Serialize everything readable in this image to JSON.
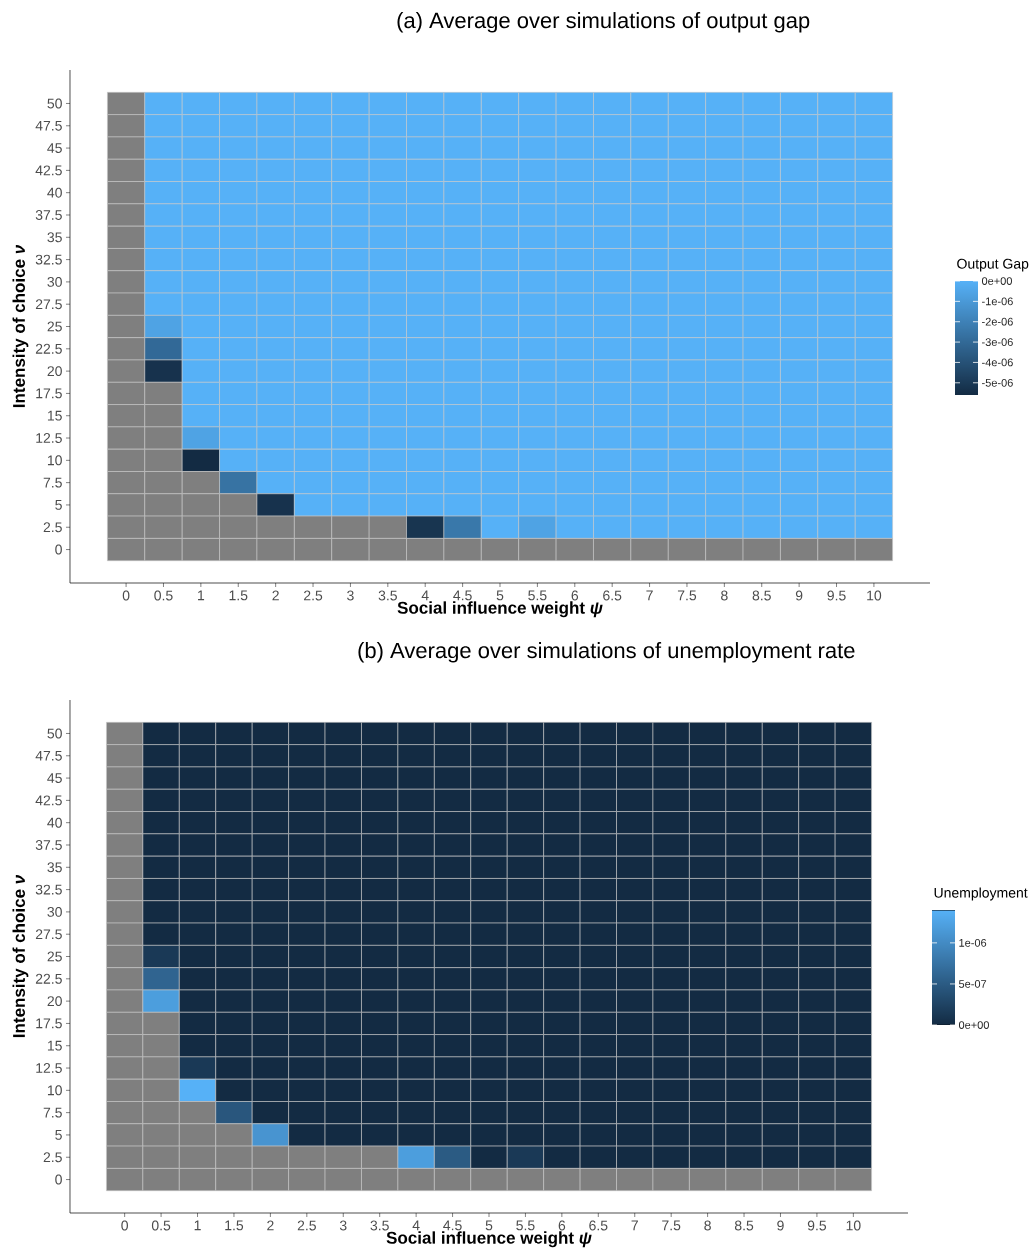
{
  "chart_data": [
    {
      "type": "heatmap",
      "title": "(a) Average over simulations of output gap",
      "xlabel": "Social influence weight *ψ*",
      "ylabel": "Intensity of choice *ν*",
      "clabel": "Output Gap",
      "categories": [
        "0",
        "0.5",
        "1",
        "1.5",
        "2",
        "2.5",
        "3",
        "3.5",
        "4",
        "4.5",
        "5",
        "5.5",
        "6",
        "6.5",
        "7",
        "7.5",
        "8",
        "8.5",
        "9",
        "9.5",
        "10"
      ],
      "y_categories": [
        "50",
        "47.5",
        "45",
        "42.5",
        "40",
        "37.5",
        "35",
        "32.5",
        "30",
        "27.5",
        "25",
        "22.5",
        "20",
        "17.5",
        "15",
        "12.5",
        "10",
        "7.5",
        "5",
        "2.5",
        "0"
      ],
      "cells": [
        [
          null,
          0,
          0,
          0,
          0,
          0,
          0,
          0,
          0,
          0,
          0,
          0,
          0,
          0,
          0,
          0,
          0,
          0,
          0,
          0,
          0
        ],
        [
          null,
          0,
          0,
          0,
          0,
          0,
          0,
          0,
          0,
          0,
          0,
          0,
          0,
          0,
          0,
          0,
          0,
          0,
          0,
          0,
          0
        ],
        [
          null,
          0,
          0,
          0,
          0,
          0,
          0,
          0,
          0,
          0,
          0,
          0,
          0,
          0,
          0,
          0,
          0,
          0,
          0,
          0,
          0
        ],
        [
          null,
          0,
          0,
          0,
          0,
          0,
          0,
          0,
          0,
          0,
          0,
          0,
          0,
          0,
          0,
          0,
          0,
          0,
          0,
          0,
          0
        ],
        [
          null,
          0,
          0,
          0,
          0,
          0,
          0,
          0,
          0,
          0,
          0,
          0,
          0,
          0,
          0,
          0,
          0,
          0,
          0,
          0,
          0
        ],
        [
          null,
          0,
          0,
          0,
          0,
          0,
          0,
          0,
          0,
          0,
          0,
          0,
          0,
          0,
          0,
          0,
          0,
          0,
          0,
          0,
          0
        ],
        [
          null,
          0,
          0,
          0,
          0,
          0,
          0,
          0,
          0,
          0,
          0,
          0,
          0,
          0,
          0,
          0,
          0,
          0,
          0,
          0,
          0
        ],
        [
          null,
          0,
          0,
          0,
          0,
          0,
          0,
          0,
          0,
          0,
          0,
          0,
          0,
          0,
          0,
          0,
          0,
          0,
          0,
          0,
          0
        ],
        [
          null,
          0,
          0,
          0,
          0,
          0,
          0,
          0,
          0,
          0,
          0,
          0,
          0,
          0,
          0,
          0,
          0,
          0,
          0,
          0,
          0
        ],
        [
          null,
          0,
          0,
          0,
          0,
          0,
          0,
          0,
          0,
          0,
          0,
          0,
          0,
          0,
          0,
          0,
          0,
          0,
          0,
          0,
          0
        ],
        [
          null,
          -6e-07,
          0,
          0,
          0,
          0,
          0,
          0,
          0,
          0,
          0,
          0,
          0,
          0,
          0,
          0,
          0,
          0,
          0,
          0,
          0
        ],
        [
          null,
          -3e-06,
          0,
          0,
          0,
          0,
          0,
          0,
          0,
          0,
          0,
          0,
          0,
          0,
          0,
          0,
          0,
          0,
          0,
          0,
          0
        ],
        [
          null,
          -5.3e-06,
          0,
          0,
          0,
          0,
          0,
          0,
          0,
          0,
          0,
          0,
          0,
          0,
          0,
          0,
          0,
          0,
          0,
          0,
          0
        ],
        [
          null,
          null,
          0,
          0,
          0,
          0,
          0,
          0,
          0,
          0,
          0,
          0,
          0,
          0,
          0,
          0,
          0,
          0,
          0,
          0,
          0
        ],
        [
          null,
          null,
          0,
          0,
          0,
          0,
          0,
          0,
          0,
          0,
          0,
          0,
          0,
          0,
          0,
          0,
          0,
          0,
          0,
          0,
          0
        ],
        [
          null,
          null,
          -6e-07,
          0,
          0,
          0,
          0,
          0,
          0,
          0,
          0,
          0,
          0,
          0,
          0,
          0,
          0,
          0,
          0,
          0,
          0
        ],
        [
          null,
          null,
          -5.6e-06,
          0,
          0,
          0,
          0,
          0,
          0,
          0,
          0,
          0,
          0,
          0,
          0,
          0,
          0,
          0,
          0,
          0,
          0
        ],
        [
          null,
          null,
          null,
          -2.6e-06,
          0,
          0,
          0,
          0,
          0,
          0,
          0,
          0,
          0,
          0,
          0,
          0,
          0,
          0,
          0,
          0,
          0
        ],
        [
          null,
          null,
          null,
          null,
          -5.3e-06,
          0,
          0,
          0,
          0,
          0,
          0,
          0,
          0,
          0,
          0,
          0,
          0,
          0,
          0,
          0,
          0
        ],
        [
          null,
          null,
          null,
          null,
          null,
          null,
          null,
          null,
          -5.2e-06,
          -2.4e-06,
          0,
          -6e-07,
          0,
          0,
          0,
          0,
          0,
          0,
          0,
          0,
          0
        ],
        [
          null,
          null,
          null,
          null,
          null,
          null,
          null,
          null,
          null,
          null,
          null,
          null,
          null,
          null,
          null,
          null,
          null,
          null,
          null,
          null,
          null
        ]
      ],
      "clim": [
        -5.6e-06,
        0
      ],
      "cticks": [
        {
          "value": 0,
          "label": "0e+00"
        },
        {
          "value": -1e-06,
          "label": "-1e-06"
        },
        {
          "value": -2e-06,
          "label": "-2e-06"
        },
        {
          "value": -3e-06,
          "label": "-3e-06"
        },
        {
          "value": -4e-06,
          "label": "-4e-06"
        },
        {
          "value": -5e-06,
          "label": "-5e-06"
        }
      ]
    },
    {
      "type": "heatmap",
      "title": "(b) Average over simulations of unemployment rate",
      "xlabel": "Social influence weight *ψ*",
      "ylabel": "Intensity of choice *ν*",
      "clabel": "Unemployment",
      "categories": [
        "0",
        "0.5",
        "1",
        "1.5",
        "2",
        "2.5",
        "3",
        "3.5",
        "4",
        "4.5",
        "5",
        "5.5",
        "6",
        "6.5",
        "7",
        "7.5",
        "8",
        "8.5",
        "9",
        "9.5",
        "10"
      ],
      "y_categories": [
        "50",
        "47.5",
        "45",
        "42.5",
        "40",
        "37.5",
        "35",
        "32.5",
        "30",
        "27.5",
        "25",
        "22.5",
        "20",
        "17.5",
        "15",
        "12.5",
        "10",
        "7.5",
        "5",
        "2.5",
        "0"
      ],
      "cells": [
        [
          null,
          0,
          0,
          0,
          0,
          0,
          0,
          0,
          0,
          0,
          0,
          0,
          0,
          0,
          0,
          0,
          0,
          0,
          0,
          0,
          0
        ],
        [
          null,
          0,
          0,
          0,
          0,
          0,
          0,
          0,
          0,
          0,
          0,
          0,
          0,
          0,
          0,
          0,
          0,
          0,
          0,
          0,
          0
        ],
        [
          null,
          0,
          0,
          0,
          0,
          0,
          0,
          0,
          0,
          0,
          0,
          0,
          0,
          0,
          0,
          0,
          0,
          0,
          0,
          0,
          0
        ],
        [
          null,
          0,
          0,
          0,
          0,
          0,
          0,
          0,
          0,
          0,
          0,
          0,
          0,
          0,
          0,
          0,
          0,
          0,
          0,
          0,
          0
        ],
        [
          null,
          0,
          0,
          0,
          0,
          0,
          0,
          0,
          0,
          0,
          0,
          0,
          0,
          0,
          0,
          0,
          0,
          0,
          0,
          0,
          0
        ],
        [
          null,
          0,
          0,
          0,
          0,
          0,
          0,
          0,
          0,
          0,
          0,
          0,
          0,
          0,
          0,
          0,
          0,
          0,
          0,
          0,
          0
        ],
        [
          null,
          0,
          0,
          0,
          0,
          0,
          0,
          0,
          0,
          0,
          0,
          0,
          0,
          0,
          0,
          0,
          0,
          0,
          0,
          0,
          0
        ],
        [
          null,
          0,
          0,
          0,
          0,
          0,
          0,
          0,
          0,
          0,
          0,
          0,
          0,
          0,
          0,
          0,
          0,
          0,
          0,
          0,
          0
        ],
        [
          null,
          0,
          0,
          0,
          0,
          0,
          0,
          0,
          0,
          0,
          0,
          0,
          0,
          0,
          0,
          0,
          0,
          0,
          0,
          0,
          0
        ],
        [
          null,
          0,
          0,
          0,
          0,
          0,
          0,
          0,
          0,
          0,
          0,
          0,
          0,
          0,
          0,
          0,
          0,
          0,
          0,
          0,
          0
        ],
        [
          null,
          1.5e-07,
          0,
          0,
          0,
          0,
          0,
          0,
          0,
          0,
          0,
          0,
          0,
          0,
          0,
          0,
          0,
          0,
          0,
          0,
          0
        ],
        [
          null,
          6e-07,
          0,
          0,
          0,
          0,
          0,
          0,
          0,
          0,
          0,
          0,
          0,
          0,
          0,
          0,
          0,
          0,
          0,
          0,
          0
        ],
        [
          null,
          1.2e-06,
          0,
          0,
          0,
          0,
          0,
          0,
          0,
          0,
          0,
          0,
          0,
          0,
          0,
          0,
          0,
          0,
          0,
          0,
          0
        ],
        [
          null,
          null,
          0,
          0,
          0,
          0,
          0,
          0,
          0,
          0,
          0,
          0,
          0,
          0,
          0,
          0,
          0,
          0,
          0,
          0,
          0
        ],
        [
          null,
          null,
          0,
          0,
          0,
          0,
          0,
          0,
          0,
          0,
          0,
          0,
          0,
          0,
          0,
          0,
          0,
          0,
          0,
          0,
          0
        ],
        [
          null,
          null,
          1.5e-07,
          0,
          0,
          0,
          0,
          0,
          0,
          0,
          0,
          0,
          0,
          0,
          0,
          0,
          0,
          0,
          0,
          0,
          0
        ],
        [
          null,
          null,
          1.4e-06,
          0,
          0,
          0,
          0,
          0,
          0,
          0,
          0,
          0,
          0,
          0,
          0,
          0,
          0,
          0,
          0,
          0,
          0
        ],
        [
          null,
          null,
          null,
          4.5e-07,
          0,
          0,
          0,
          0,
          0,
          0,
          0,
          0,
          0,
          0,
          0,
          0,
          0,
          0,
          0,
          0,
          0
        ],
        [
          null,
          null,
          null,
          null,
          1.1e-06,
          0,
          0,
          0,
          0,
          0,
          0,
          0,
          0,
          0,
          0,
          0,
          0,
          0,
          0,
          0,
          0
        ],
        [
          null,
          null,
          null,
          null,
          null,
          null,
          null,
          null,
          1.2e-06,
          5e-07,
          0,
          1.5e-07,
          0,
          0,
          0,
          0,
          0,
          0,
          0,
          0,
          0
        ],
        [
          null,
          null,
          null,
          null,
          null,
          null,
          null,
          null,
          null,
          null,
          null,
          null,
          null,
          null,
          null,
          null,
          null,
          null,
          null,
          null,
          null
        ]
      ],
      "clim": [
        0,
        1.4e-06
      ],
      "cticks": [
        {
          "value": 0,
          "label": "0e+00"
        },
        {
          "value": 5e-07,
          "label": "5e-07"
        },
        {
          "value": 1e-06,
          "label": "1e-06"
        }
      ]
    }
  ]
}
